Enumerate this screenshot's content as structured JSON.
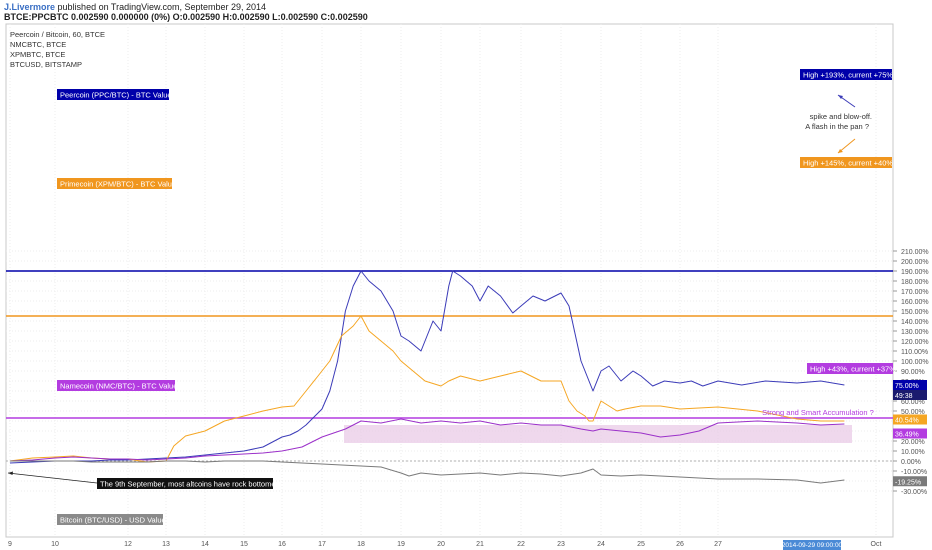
{
  "header": {
    "author": "J.Livermore",
    "published": "published on TradingView.com, September 29, 2014",
    "ohlc": "BTCE:PPCBTC  0.002590 0.000000 (0%)  O:0.002590  H:0.002590  L:0.002590  C:0.002590"
  },
  "symbols": [
    "Peercoin / Bitcoin, 60, BTCE",
    "NMCBTC, BTCE",
    "XPMBTC, BTCE",
    "BTCUSD, BITSTAMP"
  ],
  "colors": {
    "ppc": "#3b3bb8",
    "xpm": "#f5a623",
    "nmc": "#9b30c9",
    "btc": "#7a7a7a",
    "ppc_line": "#0000aa",
    "xpm_line": "#f0961e",
    "nmc_line": "#b33ce0",
    "zone": "#e8c8e6"
  },
  "labels": {
    "ppc": "Peercoin (PPC/BTC) - BTC Value",
    "xpm": "Primecoin (XPM/BTC) - BTC Value",
    "nmc": "Namecoin (NMC/BTC) - BTC Value",
    "btc": "Bitcoin (BTC/USD) - USD Value"
  },
  "annotations": {
    "ppc_high": "High +193%, current +75%",
    "xpm_high": "High +145%, current +40%",
    "nmc_high": "High +43%, current +37%",
    "spike_1": "spike and blow-off.",
    "spike_2": "A flash in the pan ?",
    "accumulation": "Strong and Smart Accumulation ?",
    "bottom": "The 9th September, most altcoins have rock bottomed"
  },
  "chart_data": {
    "type": "line",
    "x_ticks": [
      "9",
      "10",
      "12",
      "13",
      "14",
      "15",
      "16",
      "17",
      "18",
      "19",
      "20",
      "21",
      "22",
      "23",
      "24",
      "25",
      "26",
      "27",
      "Oct"
    ],
    "x_date_label": "2014-09-29 09:00:00",
    "yunit": "%",
    "ylim": [
      -35,
      215
    ],
    "y_ticks": [
      "210.00%",
      "200.00%",
      "190.00%",
      "180.00%",
      "170.00%",
      "160.00%",
      "150.00%",
      "140.00%",
      "130.00%",
      "120.00%",
      "110.00%",
      "100.00%",
      "90.00%",
      "80.00%",
      "70.00%",
      "60.00%",
      "50.00%",
      "40.00%",
      "30.00%",
      "20.00%",
      "10.00%",
      "0.00%",
      "-10.00%",
      "-20.00%",
      "-30.00%"
    ],
    "levels": {
      "ppc_high": 190,
      "xpm_high": 145,
      "nmc_high": 43
    },
    "last_values": {
      "ppc": "75.00%",
      "ppc_sub": "49:38",
      "xpm": "40.54%",
      "nmc": "36.49%",
      "btc": "-19.25%"
    },
    "series": [
      {
        "key": "ppc",
        "x": [
          9,
          9.5,
          10,
          10.5,
          11,
          11.5,
          12,
          12.5,
          13,
          13.5,
          14,
          14.5,
          15,
          15.5,
          15.8,
          16,
          16.2,
          16.4,
          16.6,
          16.8,
          17,
          17.2,
          17.4,
          17.6,
          17.8,
          18,
          18.2,
          18.5,
          18.8,
          19,
          19.2,
          19.5,
          19.8,
          20,
          20.2,
          20.3,
          20.5,
          20.8,
          21,
          21.2,
          21.5,
          21.8,
          22,
          22.3,
          22.6,
          23,
          23.2,
          23.5,
          23.7,
          23.8,
          24,
          24.2,
          24.5,
          24.8,
          25,
          25.3,
          25.6,
          26,
          26.3,
          26.6,
          27,
          27.3,
          27.6,
          28,
          28.3,
          28.6
        ],
        "y": [
          -2,
          -1,
          0,
          0,
          0,
          1,
          1,
          2,
          3,
          4,
          6,
          8,
          10,
          14,
          20,
          24,
          26,
          30,
          36,
          44,
          52,
          70,
          100,
          150,
          175,
          190,
          180,
          170,
          150,
          125,
          120,
          110,
          140,
          130,
          175,
          190,
          185,
          175,
          160,
          175,
          165,
          148,
          155,
          165,
          160,
          168,
          155,
          100,
          80,
          70,
          90,
          95,
          80,
          90,
          85,
          75,
          80,
          78,
          80,
          75,
          80,
          76,
          80,
          78,
          80,
          76
        ]
      },
      {
        "key": "xpm",
        "x": [
          9,
          9.5,
          10,
          10.5,
          11,
          11.5,
          12,
          12.5,
          13,
          13.2,
          13.5,
          14,
          14.5,
          15,
          15.5,
          16,
          16.3,
          16.6,
          16.9,
          17.2,
          17.5,
          17.8,
          18,
          18.2,
          18.5,
          18.8,
          19,
          19.3,
          19.6,
          20,
          20.2,
          20.5,
          21,
          21.5,
          22,
          22.5,
          23,
          23.2,
          23.4,
          23.6,
          23.7,
          23.8,
          24,
          24.2,
          24.4,
          24.6,
          25,
          25.5,
          26,
          26.5,
          27,
          27.5,
          28,
          28.3,
          28.6
        ],
        "y": [
          0,
          3,
          4,
          5,
          3,
          2,
          2,
          -1,
          0,
          15,
          25,
          30,
          40,
          45,
          50,
          54,
          55,
          70,
          85,
          100,
          125,
          135,
          145,
          130,
          120,
          110,
          100,
          90,
          80,
          75,
          80,
          85,
          80,
          85,
          90,
          80,
          80,
          60,
          50,
          45,
          40,
          40,
          60,
          55,
          50,
          52,
          55,
          55,
          52,
          53,
          54,
          50,
          42,
          40,
          40
        ]
      },
      {
        "key": "nmc",
        "x": [
          9,
          9.5,
          10,
          10.5,
          11,
          11.5,
          12,
          12.5,
          13,
          13.5,
          14,
          14.5,
          15,
          15.5,
          16,
          16.5,
          17,
          17.3,
          17.6,
          18,
          18.5,
          19,
          19.5,
          20,
          20.5,
          21,
          21.5,
          22,
          22.5,
          23,
          23.5,
          23.8,
          24,
          24.5,
          25,
          25.5,
          26,
          26.5,
          27,
          27.5,
          28,
          28.3,
          28.6
        ],
        "y": [
          0,
          1,
          3,
          4,
          3,
          2,
          2,
          1,
          2,
          3,
          5,
          6,
          7,
          8,
          10,
          14,
          24,
          28,
          32,
          40,
          38,
          42,
          38,
          40,
          38,
          40,
          36,
          38,
          36,
          36,
          32,
          30,
          32,
          30,
          28,
          24,
          26,
          30,
          38,
          40,
          38,
          36,
          37
        ]
      },
      {
        "key": "btc",
        "x": [
          9,
          9.5,
          10,
          10.5,
          11,
          11.5,
          12,
          12.5,
          13,
          13.5,
          14,
          14.5,
          15,
          15.5,
          16,
          16.5,
          17,
          17.5,
          18,
          18.5,
          19,
          19.2,
          19.5,
          20,
          20.5,
          21,
          21.5,
          22,
          22.5,
          23,
          23.5,
          23.8,
          24,
          24.5,
          25,
          25.5,
          26,
          26.5,
          27,
          27.5,
          28,
          28.3,
          28.6
        ],
        "y": [
          0,
          0,
          0,
          0,
          -1,
          -1,
          -1,
          -1,
          0,
          0,
          -1,
          0,
          0,
          0,
          -1,
          -2,
          -3,
          -4,
          -5,
          -6,
          -12,
          -15,
          -12,
          -14,
          -13,
          -12,
          -14,
          -12,
          -13,
          -15,
          -12,
          -8,
          -14,
          -15,
          -14,
          -15,
          -16,
          -17,
          -18,
          -18,
          -19,
          -22,
          -19
        ]
      }
    ]
  }
}
